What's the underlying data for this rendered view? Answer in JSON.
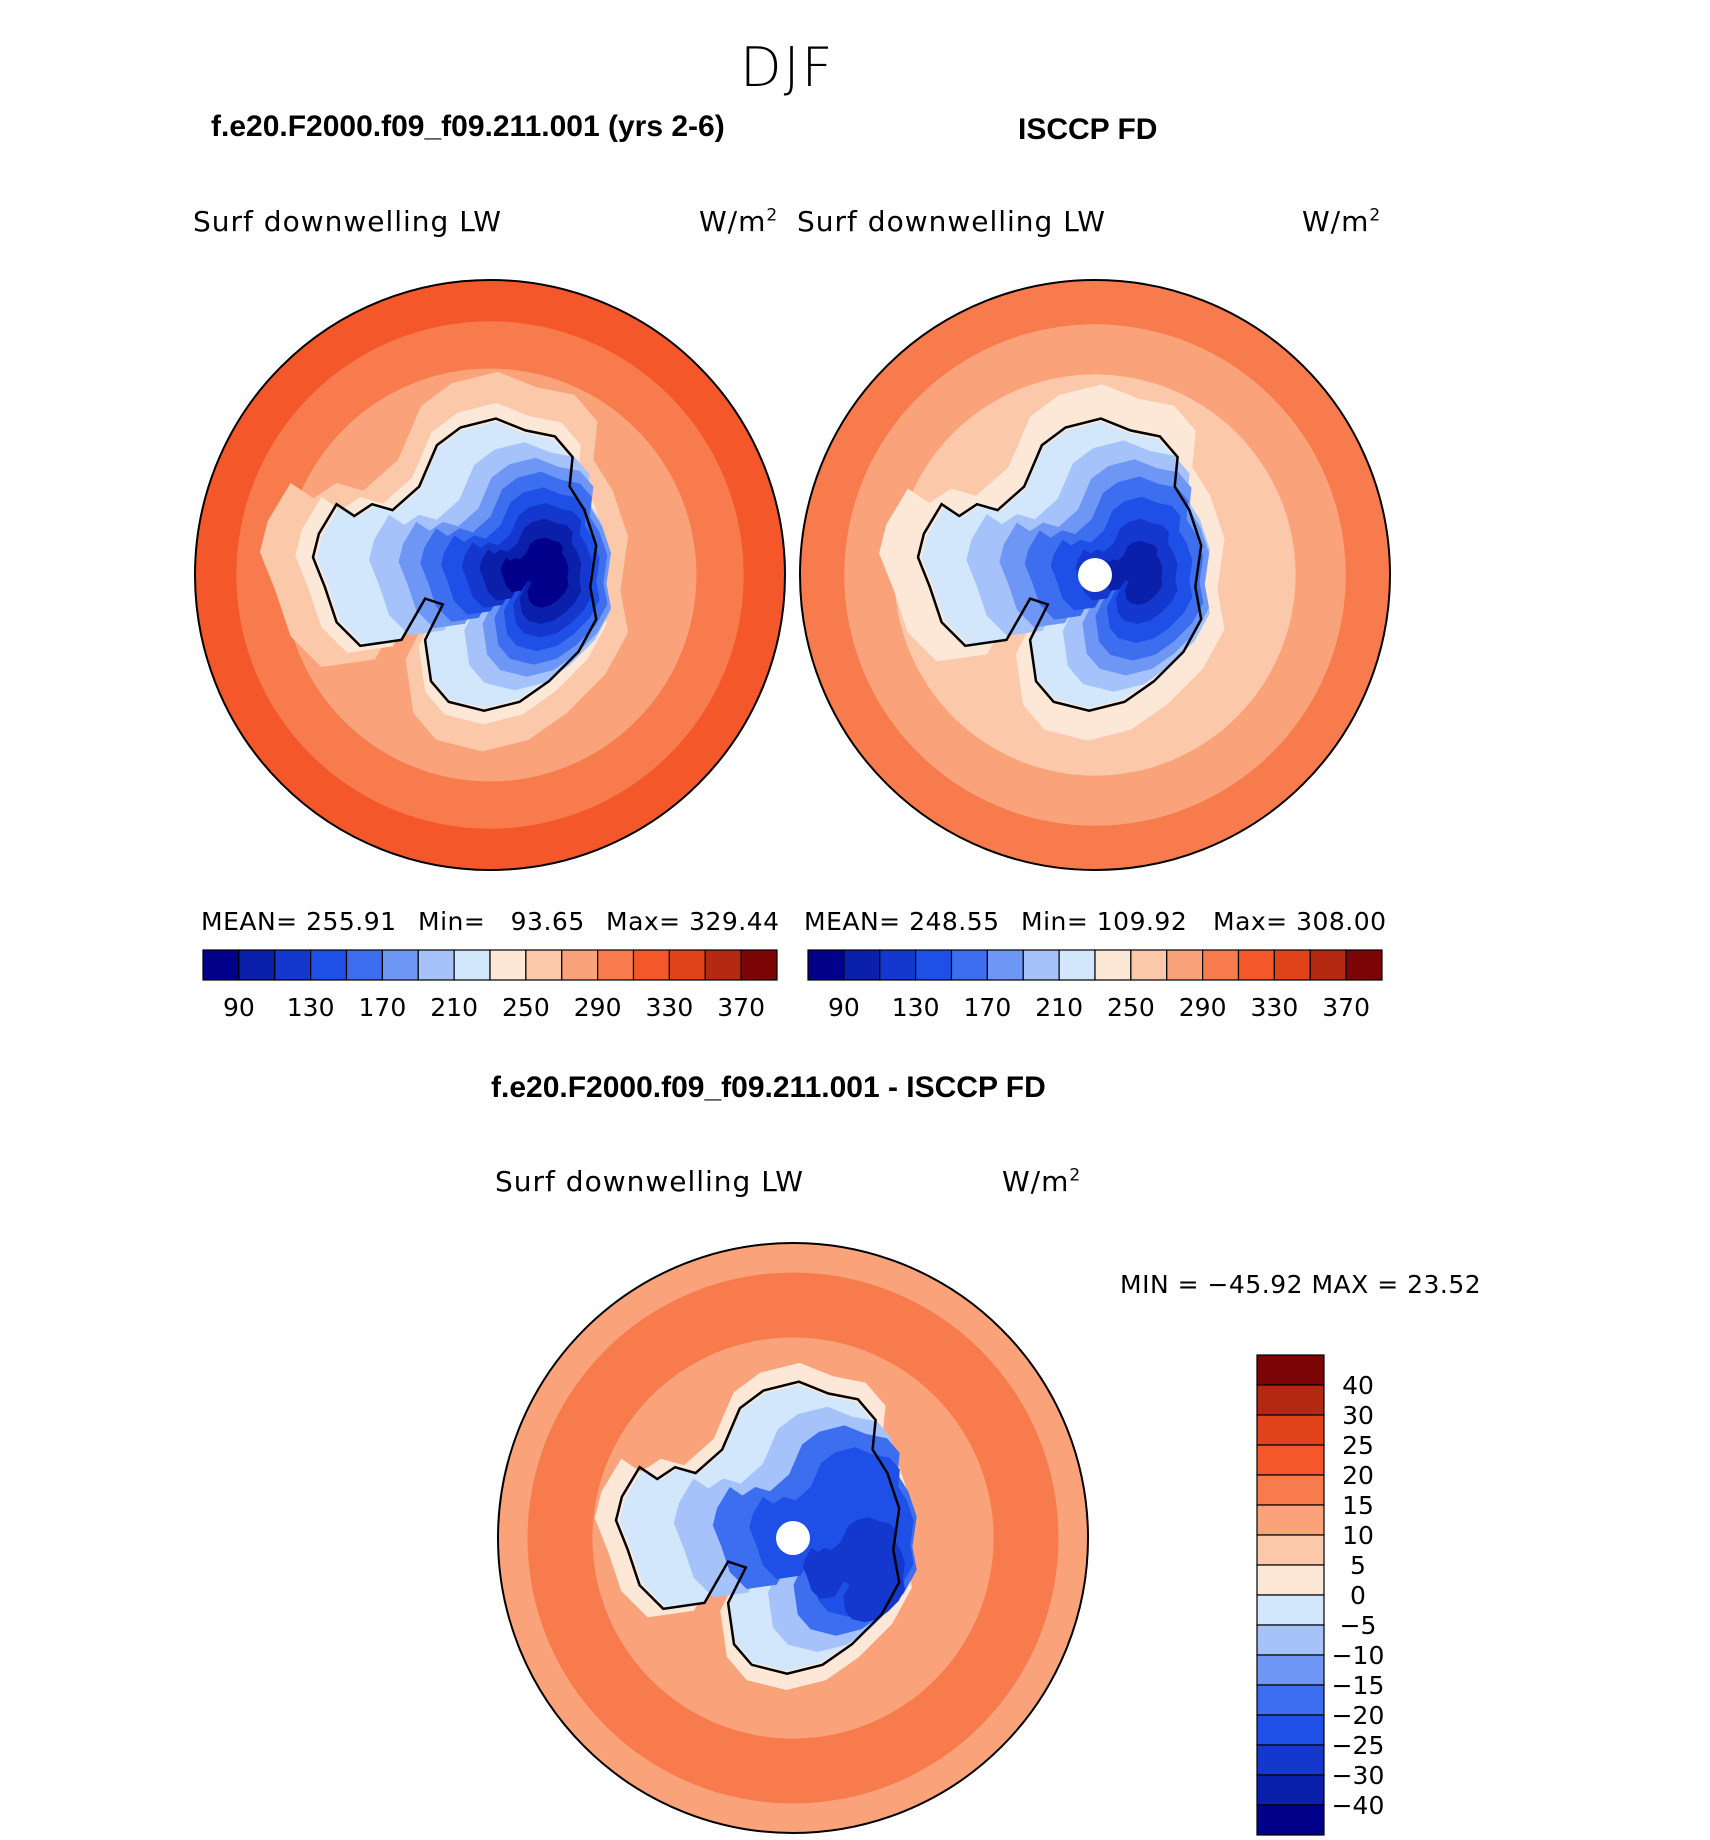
{
  "page": {
    "title": "DJF"
  },
  "chart_data": [
    {
      "type": "heatmap",
      "projection": "south-polar-stereographic",
      "title": "f.e20.F2000.f09_f09.211.001 (yrs 2-6)",
      "variable": "Surf downwelling LW",
      "units": "W/m",
      "units_exp": "2",
      "stats": {
        "mean_label": "MEAN=",
        "mean": "255.91",
        "min_label": "Min=",
        "min": "93.65",
        "max_label": "Max=",
        "max": "329.44"
      },
      "contour_levels": [
        80,
        90,
        100,
        110,
        130,
        150,
        170,
        190,
        210,
        230,
        250,
        270,
        290,
        310,
        330,
        350,
        370,
        390
      ],
      "colorbar_ticks": [
        "90",
        "130",
        "170",
        "210",
        "250",
        "290",
        "330",
        "370"
      ],
      "colors": [
        "#00008a",
        "#0a1faa",
        "#1437cd",
        "#1e50e8",
        "#3c6eef",
        "#6e96f5",
        "#a5c3fa",
        "#d2e6fc",
        "#fde8d8",
        "#fcc8aa",
        "#faa37a",
        "#f77b4d",
        "#f4572a",
        "#e0421a",
        "#b52812",
        "#7c0606"
      ]
    },
    {
      "type": "heatmap",
      "projection": "south-polar-stereographic",
      "title": "ISCCP FD",
      "variable": "Surf downwelling LW",
      "units": "W/m",
      "units_exp": "2",
      "stats": {
        "mean_label": "MEAN=",
        "mean": "248.55",
        "min_label": "Min=",
        "min": "109.92",
        "max_label": "Max=",
        "max": "308.00"
      },
      "contour_levels": [
        80,
        90,
        100,
        110,
        130,
        150,
        170,
        190,
        210,
        230,
        250,
        270,
        290,
        310,
        330,
        350,
        370,
        390
      ],
      "colorbar_ticks": [
        "90",
        "130",
        "170",
        "210",
        "250",
        "290",
        "330",
        "370"
      ],
      "colors": [
        "#00008a",
        "#0a1faa",
        "#1437cd",
        "#1e50e8",
        "#3c6eef",
        "#6e96f5",
        "#a5c3fa",
        "#d2e6fc",
        "#fde8d8",
        "#fcc8aa",
        "#faa37a",
        "#f77b4d",
        "#f4572a",
        "#e0421a",
        "#b52812",
        "#7c0606"
      ]
    },
    {
      "type": "heatmap",
      "projection": "south-polar-stereographic",
      "title": "f.e20.F2000.f09_f09.211.001 - ISCCP FD",
      "variable": "Surf downwelling LW",
      "units": "W/m",
      "units_exp": "2",
      "stats_line": "MIN = −45.92 MAX =   23.52",
      "stats": {
        "min": -45.92,
        "max": 23.52
      },
      "colorbar_ticks": [
        "40",
        "30",
        "25",
        "20",
        "15",
        "10",
        "5",
        "0",
        "−5",
        "−10",
        "−15",
        "−20",
        "−25",
        "−30",
        "−40"
      ],
      "colors": [
        "#7c0606",
        "#b52812",
        "#e0421a",
        "#f4572a",
        "#f77b4d",
        "#faa37a",
        "#fcc8aa",
        "#fde8d8",
        "#d2e6fc",
        "#a5c3fa",
        "#6e96f5",
        "#3c6eef",
        "#1e50e8",
        "#1437cd",
        "#0a1faa",
        "#00008a"
      ]
    }
  ]
}
